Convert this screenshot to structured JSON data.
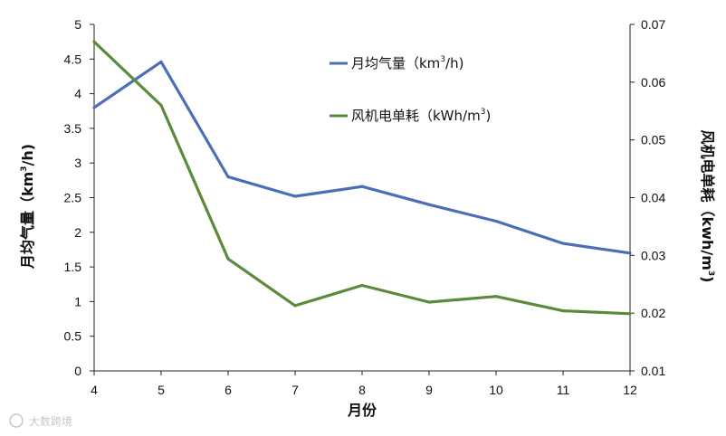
{
  "chart_data": {
    "type": "line",
    "categories": [
      4,
      5,
      6,
      7,
      8,
      9,
      10,
      11,
      12
    ],
    "xlabel": "月份",
    "ylabel_left": {
      "main": "月均气量（km",
      "sup": "3",
      "tail": "/h)"
    },
    "ylabel_right": {
      "main": "风机电单耗（kwh/m",
      "sup": "3",
      "tail": ")"
    },
    "y_left": {
      "min": 0,
      "max": 5,
      "ticks": [
        "0",
        "0.5",
        "1",
        "1.5",
        "2",
        "2.5",
        "3",
        "3.5",
        "4",
        "4.5",
        "5"
      ]
    },
    "y_right": {
      "min": 0.01,
      "max": 0.07,
      "ticks": [
        "0.01",
        "0.02",
        "0.03",
        "0.04",
        "0.05",
        "0.06",
        "0.07"
      ]
    },
    "series": [
      {
        "name": {
          "main": "月均气量（km",
          "sup": "3",
          "tail": "/h)"
        },
        "axis": "left",
        "color": "#4a6fb5",
        "values": [
          3.8,
          4.46,
          2.8,
          2.52,
          2.66,
          2.4,
          2.16,
          1.84,
          1.7
        ]
      },
      {
        "name": {
          "main": "风机电单耗（kWh/m",
          "sup": "3",
          "tail": ")"
        },
        "axis": "right",
        "color": "#5b8a3a",
        "values": [
          0.067,
          0.056,
          0.0294,
          0.0213,
          0.0248,
          0.0219,
          0.0229,
          0.0204,
          0.0199
        ]
      }
    ],
    "grid": false,
    "legend_position": "top-center"
  },
  "watermark": "大数跨境"
}
